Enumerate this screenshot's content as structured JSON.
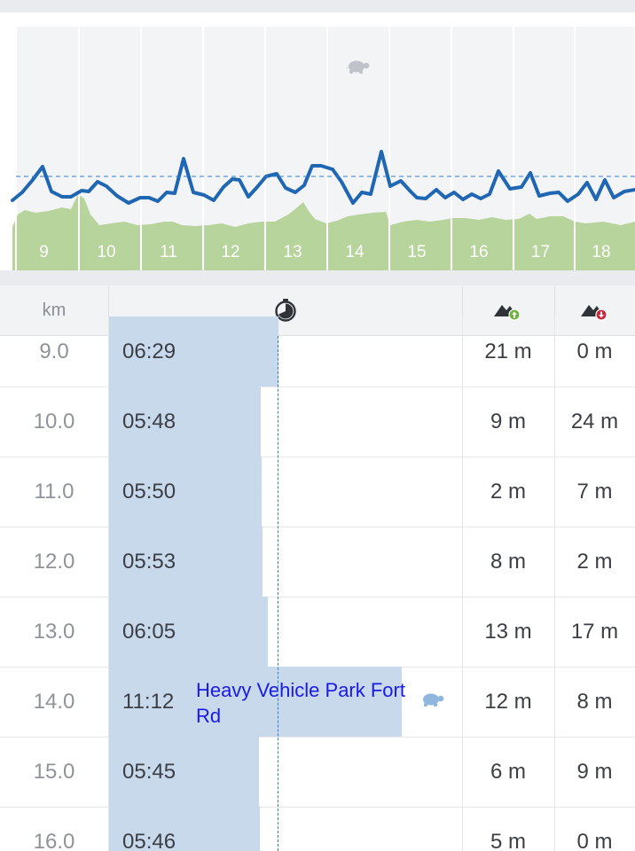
{
  "chart": {
    "x_labels": [
      "9",
      "10",
      "11",
      "12",
      "13",
      "14",
      "15",
      "16",
      "17",
      "18"
    ],
    "slow_icon": "turtle-icon",
    "pace_color": "#1f66b3",
    "elevation_color": "#b6d49b",
    "reference_line_color": "#2f7fd0"
  },
  "table": {
    "header": {
      "km_label": "km",
      "time_icon": "stopwatch-icon",
      "ascent_icon": "ascent-icon",
      "descent_icon": "descent-icon"
    },
    "rows": [
      {
        "km": "9.0",
        "pace": "06:29",
        "ascent": "21 m",
        "descent": "0 m",
        "pace_seconds": 389
      },
      {
        "km": "10.0",
        "pace": "05:48",
        "ascent": "9 m",
        "descent": "24 m",
        "pace_seconds": 348
      },
      {
        "km": "11.0",
        "pace": "05:50",
        "ascent": "2 m",
        "descent": "7 m",
        "pace_seconds": 350
      },
      {
        "km": "12.0",
        "pace": "05:53",
        "ascent": "8 m",
        "descent": "2 m",
        "pace_seconds": 353
      },
      {
        "km": "13.0",
        "pace": "06:05",
        "ascent": "13 m",
        "descent": "17 m",
        "pace_seconds": 365
      },
      {
        "km": "14.0",
        "pace": "11:12",
        "ascent": "12 m",
        "descent": "8 m",
        "pace_seconds": 672,
        "poi": "Heavy Vehicle Park Fort Rd",
        "slow": true
      },
      {
        "km": "15.0",
        "pace": "05:45",
        "ascent": "6 m",
        "descent": "9 m",
        "pace_seconds": 345
      },
      {
        "km": "16.0",
        "pace": "05:46",
        "ascent": "5 m",
        "descent": "0 m",
        "pace_seconds": 346
      }
    ]
  }
}
